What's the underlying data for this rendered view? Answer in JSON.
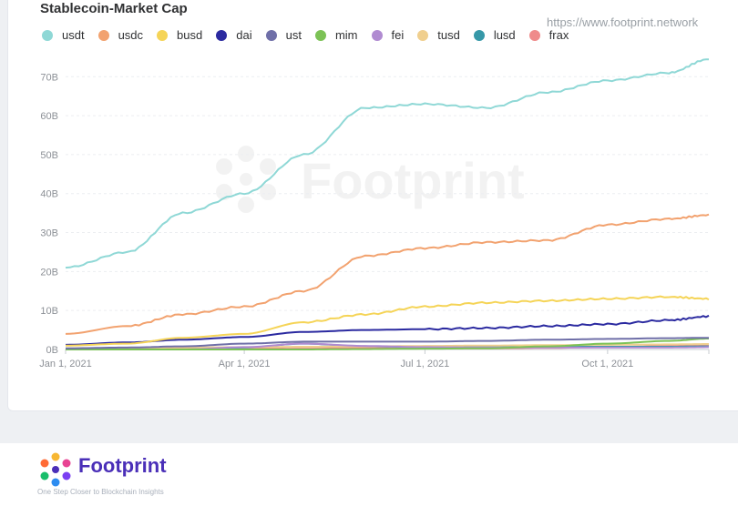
{
  "header": {
    "title": "Stablecoin-Market Cap",
    "url": "https://www.footprint.network"
  },
  "watermark": {
    "text": "Footprint"
  },
  "footer": {
    "brand": "Footprint",
    "tagline": "One Step Closer to Blockchain Insights"
  },
  "colors": {
    "usdt": "#8fd8d6",
    "usdc": "#f2a26f",
    "busd": "#f5d457",
    "dai": "#2b2aa0",
    "ust": "#6f6fa8",
    "mim": "#7cc256",
    "fei": "#b08bd1",
    "tusd": "#f0cf8e",
    "lusd": "#3698a8",
    "frax": "#ef8b8b"
  },
  "chart_data": {
    "type": "line",
    "title": "Stablecoin-Market Cap",
    "x_tick_labels": [
      "Jan 1, 2021",
      "Apr 1, 2021",
      "Jul 1, 2021",
      "Oct 1, 2021"
    ],
    "y_tick_labels": [
      "0B",
      "10B",
      "20B",
      "30B",
      "40B",
      "50B",
      "60B",
      "70B"
    ],
    "ylim": [
      0,
      78
    ],
    "xlim": [
      "2021-01-01",
      "2021-11-21"
    ],
    "grid": "horizontal",
    "legend_position": "top-left",
    "x": [
      "2021-01-01",
      "2021-02-01",
      "2021-03-01",
      "2021-04-01",
      "2021-05-01",
      "2021-06-01",
      "2021-07-01",
      "2021-08-01",
      "2021-09-01",
      "2021-10-01",
      "2021-11-01",
      "2021-11-21"
    ],
    "series": [
      {
        "name": "usdt",
        "values": [
          21,
          25,
          35,
          40,
          50,
          62,
          63,
          62,
          66,
          69,
          71,
          74.5
        ]
      },
      {
        "name": "usdc",
        "values": [
          4,
          6,
          9,
          11,
          15,
          24,
          26,
          27.5,
          28,
          32,
          33.5,
          34.5
        ]
      },
      {
        "name": "busd",
        "values": [
          1,
          1.5,
          3,
          4,
          7,
          9,
          11,
          12,
          12.5,
          13,
          13.5,
          13
        ]
      },
      {
        "name": "dai",
        "values": [
          1.2,
          1.8,
          2.5,
          3.2,
          4.5,
          5,
          5.2,
          5.5,
          6,
          6.5,
          7.5,
          8.5
        ]
      },
      {
        "name": "ust",
        "values": [
          0.3,
          0.5,
          0.8,
          1.5,
          2,
          2,
          2,
          2.2,
          2.5,
          2.7,
          2.9,
          3
        ]
      },
      {
        "name": "mim",
        "values": [
          0,
          0,
          0,
          0,
          0,
          0.1,
          0.2,
          0.3,
          0.8,
          1.5,
          2.2,
          2.8
        ]
      },
      {
        "name": "fei",
        "values": [
          0,
          0,
          0,
          0.6,
          1.5,
          0.9,
          0.6,
          0.5,
          0.5,
          0.5,
          0.5,
          0.6
        ]
      },
      {
        "name": "tusd",
        "values": [
          0.3,
          0.4,
          0.5,
          0.6,
          0.7,
          0.8,
          0.9,
          1,
          1.1,
          1.2,
          1.3,
          1.4
        ]
      },
      {
        "name": "lusd",
        "values": [
          0,
          0,
          0,
          0.5,
          1.5,
          0.8,
          0.6,
          0.7,
          0.8,
          0.7,
          0.7,
          0.8
        ]
      },
      {
        "name": "frax",
        "values": [
          0.1,
          0.2,
          0.3,
          0.4,
          0.5,
          0.4,
          0.3,
          0.3,
          0.4,
          0.6,
          0.9,
          1.2
        ]
      }
    ]
  }
}
